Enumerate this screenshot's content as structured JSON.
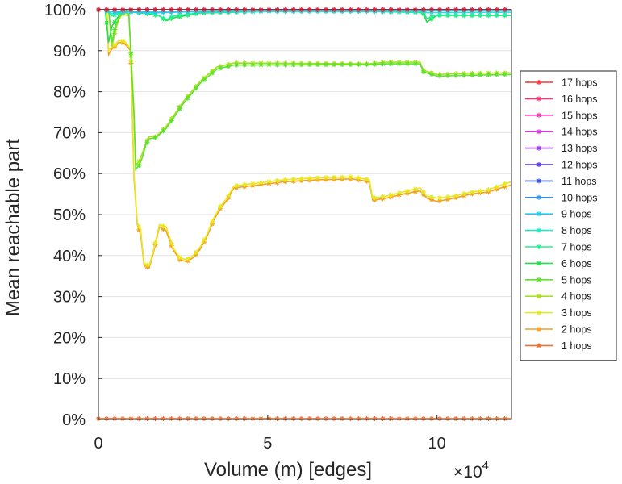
{
  "chart_data": {
    "type": "line",
    "title": "",
    "xlabel": "Volume (m) [edges]",
    "ylabel": "Mean reachable part",
    "x_multiplier_label": "×10",
    "x_multiplier_exp": "4",
    "xlim": [
      0,
      122000
    ],
    "ylim": [
      0,
      100
    ],
    "x_ticks": [
      {
        "value": 0,
        "label": "0"
      },
      {
        "value": 50000,
        "label": "5"
      },
      {
        "value": 100000,
        "label": "10"
      }
    ],
    "y_ticks": [
      {
        "value": 0,
        "label": "0%"
      },
      {
        "value": 10,
        "label": "10%"
      },
      {
        "value": 20,
        "label": "20%"
      },
      {
        "value": 30,
        "label": "30%"
      },
      {
        "value": 40,
        "label": "40%"
      },
      {
        "value": 50,
        "label": "50%"
      },
      {
        "value": 60,
        "label": "60%"
      },
      {
        "value": 70,
        "label": "70%"
      },
      {
        "value": 80,
        "label": "80%"
      },
      {
        "value": 90,
        "label": "90%"
      },
      {
        "value": 100,
        "label": "100%"
      }
    ],
    "grid": "horizontal",
    "legend_position": "right",
    "series": [
      {
        "name": "17 hops",
        "color": "#ff3030",
        "x": [
          0,
          30000,
          60000,
          90000,
          122000
        ],
        "y": [
          100,
          100,
          100,
          100,
          100
        ]
      },
      {
        "name": "16 hops",
        "color": "#ff3070",
        "x": [
          0,
          30000,
          60000,
          90000,
          122000
        ],
        "y": [
          100,
          100,
          100,
          100,
          100
        ]
      },
      {
        "name": "15 hops",
        "color": "#ff30b0",
        "x": [
          0,
          30000,
          60000,
          90000,
          122000
        ],
        "y": [
          100,
          100,
          100,
          100,
          100
        ]
      },
      {
        "name": "14 hops",
        "color": "#e030e8",
        "x": [
          0,
          30000,
          60000,
          90000,
          122000
        ],
        "y": [
          100,
          100,
          100,
          100,
          100
        ]
      },
      {
        "name": "13 hops",
        "color": "#a030f0",
        "x": [
          0,
          30000,
          60000,
          90000,
          122000
        ],
        "y": [
          100,
          100,
          100,
          100,
          100
        ]
      },
      {
        "name": "12 hops",
        "color": "#5530f0",
        "x": [
          0,
          30000,
          60000,
          90000,
          122000
        ],
        "y": [
          100,
          100,
          100,
          100,
          100
        ]
      },
      {
        "name": "11 hops",
        "color": "#2a50f0",
        "x": [
          0,
          30000,
          60000,
          80000,
          122000
        ],
        "y": [
          100,
          100,
          100,
          100,
          100
        ]
      },
      {
        "name": "10 hops",
        "color": "#2e90f0",
        "x": [
          0,
          30000,
          60000,
          80000,
          122000
        ],
        "y": [
          100,
          100,
          100,
          100,
          100
        ]
      },
      {
        "name": "9 hops",
        "color": "#20c8f0",
        "x": [
          0,
          2000,
          3000,
          20000,
          50000,
          80000,
          122000
        ],
        "y": [
          100,
          100,
          99.5,
          99.4,
          99.8,
          99.7,
          99.8
        ]
      },
      {
        "name": "8 hops",
        "color": "#20e8d0",
        "x": [
          0,
          2000,
          4000,
          8000,
          15000,
          30000,
          80000,
          96000,
          97000,
          122000
        ],
        "y": [
          100,
          100,
          99,
          99.5,
          99.2,
          99.6,
          99.7,
          99.6,
          99.3,
          99.4
        ]
      },
      {
        "name": "7 hops",
        "color": "#20f090",
        "x": [
          0,
          2000,
          4000,
          8000,
          15000,
          18000,
          20000,
          22000,
          30000,
          50000,
          80000,
          96000,
          97000,
          100000,
          122000
        ],
        "y": [
          100,
          100,
          98.5,
          99.5,
          99.2,
          98.5,
          97.5,
          98.4,
          99.3,
          99.6,
          99.6,
          99.3,
          97.8,
          98.7,
          98.6
        ]
      },
      {
        "name": "6 hops",
        "color": "#20e050",
        "x": [
          0,
          2000,
          3000,
          4000,
          6000,
          7500,
          9000,
          15000,
          18000,
          20000,
          22000,
          30000,
          50000,
          80000,
          95000,
          96000,
          97000,
          100000,
          122000
        ],
        "y": [
          100,
          100,
          92,
          96,
          98.5,
          100,
          99.5,
          99,
          98.5,
          97.3,
          98,
          99.2,
          99.6,
          99.6,
          99.4,
          99,
          97,
          98.6,
          98.6
        ]
      },
      {
        "name": "5 hops",
        "color": "#60e030",
        "x": [
          0,
          3000,
          4000,
          5000,
          6000,
          7000,
          9000,
          10500,
          11000,
          12000,
          13000,
          14000,
          15000,
          17000,
          20000,
          25000,
          30000,
          35000,
          40000,
          80000,
          85000,
          95000,
          96000,
          100000,
          110000,
          122000
        ],
        "y": [
          100,
          100,
          92,
          96,
          98,
          99.5,
          99,
          75,
          61,
          62,
          64,
          67,
          68.5,
          68.8,
          71,
          77,
          82,
          85.5,
          86.5,
          86.6,
          86.8,
          86.8,
          84.8,
          83.8,
          84,
          84.2
        ]
      },
      {
        "name": "4 hops",
        "color": "#a8e020",
        "x": [
          0,
          3000,
          4000,
          5000,
          6000,
          7000,
          9000,
          10500,
          11000,
          12000,
          13000,
          14000,
          15000,
          17000,
          20000,
          25000,
          30000,
          35000,
          40000,
          80000,
          85000,
          95000,
          96000,
          100000,
          110000,
          122000
        ],
        "y": [
          100,
          100,
          91,
          95,
          97.5,
          99,
          98.5,
          74,
          62,
          63,
          65,
          67.5,
          69,
          69,
          71.5,
          77.5,
          82.5,
          86,
          87,
          86.8,
          87.2,
          87.2,
          85.2,
          84.2,
          84.5,
          84.6
        ]
      },
      {
        "name": "3 hops",
        "color": "#e8e820",
        "x": [
          0,
          2500,
          3000,
          4000,
          5000,
          6000,
          7000,
          8000,
          9500,
          10500,
          11500,
          12500,
          13500,
          15000,
          16500,
          18000,
          20000,
          22000,
          24000,
          26000,
          28000,
          30000,
          32000,
          34000,
          36000,
          38000,
          40000,
          45000,
          55000,
          65000,
          75000,
          80000,
          81000,
          85000,
          90000,
          95000,
          97000,
          100000,
          105000,
          110000,
          115000,
          120000,
          122000
        ],
        "y": [
          100,
          100,
          90,
          91,
          91.5,
          92.5,
          92.5,
          92,
          90.5,
          60,
          48,
          46,
          38,
          37.5,
          42,
          47.5,
          47,
          42,
          39.5,
          39,
          40,
          42,
          45,
          49,
          52,
          54,
          57,
          57.5,
          58.5,
          59,
          59.2,
          58.5,
          54,
          54.5,
          55.5,
          56.5,
          54.5,
          54,
          54.5,
          55.5,
          56,
          57.5,
          58
        ]
      },
      {
        "name": "2 hops",
        "color": "#f4a020",
        "x": [
          0,
          2500,
          3000,
          4000,
          5000,
          6000,
          7000,
          8000,
          9500,
          10500,
          11500,
          12500,
          13500,
          15000,
          16500,
          18000,
          20000,
          22000,
          24000,
          26000,
          28000,
          30000,
          32000,
          34000,
          36000,
          38000,
          40000,
          45000,
          55000,
          65000,
          75000,
          80000,
          81000,
          85000,
          90000,
          95000,
          97000,
          100000,
          105000,
          110000,
          115000,
          120000,
          122000
        ],
        "y": [
          100,
          100,
          89,
          90.5,
          91,
          92,
          92,
          91.5,
          90,
          59,
          47.5,
          45,
          37.5,
          37,
          41.5,
          47,
          46,
          41.5,
          39,
          38.5,
          39.5,
          41.5,
          44.5,
          48.5,
          51.5,
          53.5,
          56.5,
          57,
          58,
          58.5,
          58.7,
          58,
          53.5,
          54,
          55,
          55.8,
          54,
          53.2,
          54,
          55,
          55.5,
          56.8,
          57.2
        ]
      },
      {
        "name": "1 hops",
        "color": "#f07030",
        "x": [
          0,
          20000,
          40000,
          60000,
          80000,
          100000,
          122000
        ],
        "y": [
          0.2,
          0.2,
          0.2,
          0.2,
          0.2,
          0.2,
          0.2
        ]
      }
    ]
  }
}
